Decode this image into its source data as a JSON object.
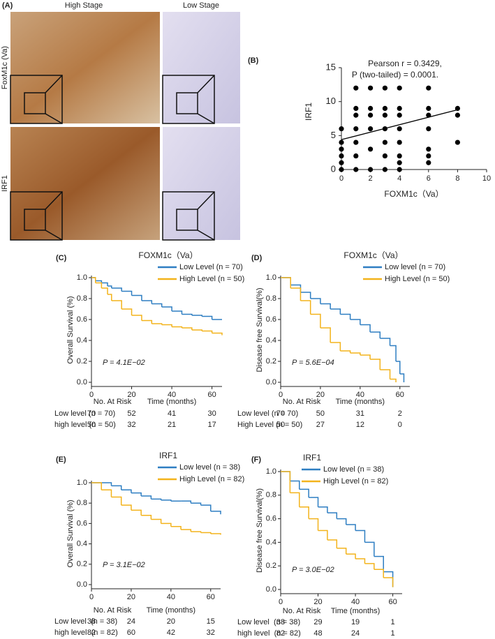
{
  "panel_a": {
    "label": "(A)",
    "columns": [
      "High Stage",
      "Low Stage"
    ],
    "rows": [
      "FoxM1c (Va)",
      "IRF1"
    ]
  },
  "chart_data": [
    {
      "type": "scatter",
      "panel": "(B)",
      "x_label": "FOXM1c（Va）",
      "y_label": "IRF1",
      "annotations": [
        "Pearson r = 0.3429,",
        "P (two-tailed) = 0.0001."
      ],
      "x": [
        0,
        0,
        0,
        0,
        0,
        0,
        1,
        1,
        1,
        1,
        1,
        1,
        1,
        2,
        2,
        2,
        2,
        2,
        2,
        3,
        3,
        3,
        3,
        3,
        3,
        3,
        4,
        4,
        4,
        4,
        4,
        4,
        4,
        4,
        6,
        6,
        6,
        6,
        6,
        6,
        6,
        8,
        8,
        8
      ],
      "y": [
        0,
        1,
        2,
        3,
        4,
        6,
        0,
        2,
        4,
        6,
        8,
        9,
        12,
        0,
        3,
        6,
        8,
        9,
        12,
        0,
        2,
        4,
        6,
        8,
        9,
        12,
        0,
        1,
        2,
        4,
        6,
        8,
        9,
        12,
        1,
        2,
        3,
        6,
        8,
        9,
        12,
        4,
        8,
        9
      ],
      "color": "#000000",
      "fit": {
        "x": [
          0,
          8
        ],
        "y": [
          4.4,
          8.8
        ]
      },
      "xlim": [
        0,
        10
      ],
      "ylim": [
        0,
        15
      ],
      "xticks": [
        0,
        2,
        4,
        6,
        8,
        10
      ],
      "yticks": [
        0,
        5,
        10,
        15
      ]
    },
    {
      "type": "step",
      "panel": "(C)",
      "title": "FOXM1c（Va）",
      "y_label": "Overall Survival (%)",
      "annotation": "P = 4.1E−02",
      "series": [
        {
          "name": "Low Level (n = 70)",
          "color": "#2e7ec2",
          "x": [
            0,
            2,
            5,
            8,
            10,
            15,
            20,
            25,
            30,
            35,
            40,
            45,
            50,
            55,
            60,
            65
          ],
          "y": [
            1,
            0.97,
            0.95,
            0.92,
            0.9,
            0.87,
            0.83,
            0.78,
            0.75,
            0.72,
            0.68,
            0.65,
            0.64,
            0.63,
            0.6,
            0.6
          ]
        },
        {
          "name": "High Level (n = 50)",
          "color": "#f3b31b",
          "x": [
            0,
            2,
            5,
            8,
            10,
            15,
            20,
            25,
            30,
            35,
            40,
            45,
            50,
            55,
            60,
            65
          ],
          "y": [
            1,
            0.95,
            0.9,
            0.84,
            0.78,
            0.7,
            0.64,
            0.59,
            0.56,
            0.55,
            0.53,
            0.52,
            0.5,
            0.49,
            0.47,
            0.45
          ]
        }
      ],
      "xlim": [
        0,
        65
      ],
      "ylim": [
        0,
        1
      ],
      "xticks": [
        0,
        20,
        40,
        60
      ],
      "yticks": [
        {
          "value": 0,
          "label": "0.0"
        },
        0.2,
        0.4,
        0.6,
        0.8,
        {
          "value": 1,
          "label": "1.0"
        }
      ],
      "risk_table": {
        "title": "No. At Risk",
        "time_label": "Time (months)",
        "rows": [
          {
            "label": "Low level (n = 70)",
            "values": [
              70,
              52,
              41,
              30
            ]
          },
          {
            "label": "high level (n = 50)",
            "values": [
              50,
              32,
              21,
              17
            ]
          }
        ]
      }
    },
    {
      "type": "step",
      "panel": "(D)",
      "title": "FOXM1c（Va）",
      "y_label": "Disease free Survival(%)",
      "annotation": "P = 5.6E−04",
      "series": [
        {
          "name": "Low level (n = 70)",
          "color": "#2e7ec2",
          "x": [
            0,
            5,
            10,
            15,
            20,
            25,
            30,
            35,
            40,
            45,
            50,
            55,
            58,
            60,
            62
          ],
          "y": [
            1,
            0.93,
            0.86,
            0.8,
            0.75,
            0.7,
            0.65,
            0.6,
            0.55,
            0.48,
            0.42,
            0.35,
            0.2,
            0.08,
            0
          ]
        },
        {
          "name": "High Level (n = 50)",
          "color": "#f3b31b",
          "x": [
            0,
            5,
            10,
            15,
            20,
            25,
            30,
            35,
            40,
            45,
            50,
            55,
            58
          ],
          "y": [
            1,
            0.9,
            0.78,
            0.65,
            0.52,
            0.38,
            0.3,
            0.28,
            0.26,
            0.22,
            0.12,
            0.03,
            0
          ]
        }
      ],
      "xlim": [
        0,
        65
      ],
      "ylim": [
        0,
        1
      ],
      "xticks": [
        0,
        20,
        40,
        60
      ],
      "yticks": [
        {
          "value": 0,
          "label": "0.0"
        },
        0.2,
        0.4,
        0.6,
        0.8,
        {
          "value": 1,
          "label": "1.0"
        }
      ],
      "risk_table": {
        "title": "No. At Risk",
        "time_label": "Time (months)",
        "rows": [
          {
            "label": "Low level (n = 70)",
            "values": [
              70,
              50,
              31,
              2
            ]
          },
          {
            "label": "High Level (n = 50)",
            "values": [
              50,
              27,
              12,
              0
            ]
          }
        ]
      }
    },
    {
      "type": "step",
      "panel": "(E)",
      "title": "IRF1",
      "y_label": "Overall Survival (%)",
      "annotation": "P = 3.1E−02",
      "series": [
        {
          "name": "Low level (n = 38)",
          "color": "#2e7ec2",
          "x": [
            0,
            10,
            15,
            20,
            25,
            30,
            35,
            40,
            45,
            50,
            55,
            60,
            65
          ],
          "y": [
            1,
            0.97,
            0.93,
            0.9,
            0.87,
            0.84,
            0.83,
            0.82,
            0.82,
            0.8,
            0.78,
            0.72,
            0.69
          ]
        },
        {
          "name": "High Level (n = 82)",
          "color": "#f3b31b",
          "x": [
            0,
            5,
            10,
            15,
            20,
            25,
            30,
            35,
            40,
            45,
            50,
            55,
            60,
            65
          ],
          "y": [
            1,
            0.93,
            0.86,
            0.78,
            0.73,
            0.68,
            0.64,
            0.6,
            0.57,
            0.54,
            0.52,
            0.51,
            0.5,
            0.49
          ]
        }
      ],
      "xlim": [
        0,
        65
      ],
      "ylim": [
        0,
        1
      ],
      "xticks": [
        0,
        20,
        40,
        60
      ],
      "yticks": [
        {
          "value": 0,
          "label": "0.0"
        },
        0.2,
        0.4,
        0.6,
        0.8,
        {
          "value": 1,
          "label": "1.0"
        }
      ],
      "risk_table": {
        "title": "No. At Risk",
        "time_label": "Time (months)",
        "rows": [
          {
            "label": "Low level  (n = 38)",
            "values": [
              38,
              24,
              20,
              15
            ]
          },
          {
            "label": "high level  (n = 82)",
            "values": [
              82,
              60,
              42,
              32
            ]
          }
        ]
      }
    },
    {
      "type": "step",
      "panel": "(F)",
      "title": "IRF1",
      "y_label": "Disease free Survival(%)",
      "annotation": "P = 3.0E−02",
      "series": [
        {
          "name": "Low level (n = 38)",
          "color": "#2e7ec2",
          "x": [
            0,
            5,
            10,
            15,
            20,
            25,
            30,
            35,
            40,
            45,
            50,
            55,
            60
          ],
          "y": [
            1,
            0.92,
            0.85,
            0.78,
            0.7,
            0.65,
            0.6,
            0.55,
            0.5,
            0.4,
            0.28,
            0.15,
            0.02
          ]
        },
        {
          "name": "High Level (n = 82)",
          "color": "#f3b31b",
          "x": [
            0,
            5,
            10,
            15,
            20,
            25,
            30,
            35,
            40,
            45,
            50,
            55,
            60
          ],
          "y": [
            1,
            0.82,
            0.7,
            0.6,
            0.5,
            0.42,
            0.35,
            0.3,
            0.26,
            0.22,
            0.17,
            0.1,
            0.02
          ]
        }
      ],
      "xlim": [
        0,
        65
      ],
      "ylim": [
        0,
        1
      ],
      "xticks": [
        0,
        20,
        40,
        60
      ],
      "yticks": [
        {
          "value": 0,
          "label": "0.0"
        },
        0.2,
        0.4,
        0.6,
        0.8,
        {
          "value": 1,
          "label": "1.0"
        }
      ],
      "risk_table": {
        "title": "No. At Risk",
        "time_label": "Time (months)",
        "rows": [
          {
            "label": "Low level  (n = 38)",
            "values": [
              38,
              29,
              19,
              1
            ]
          },
          {
            "label": "high level  (n = 82)",
            "values": [
              82,
              48,
              24,
              1
            ]
          }
        ]
      }
    }
  ]
}
